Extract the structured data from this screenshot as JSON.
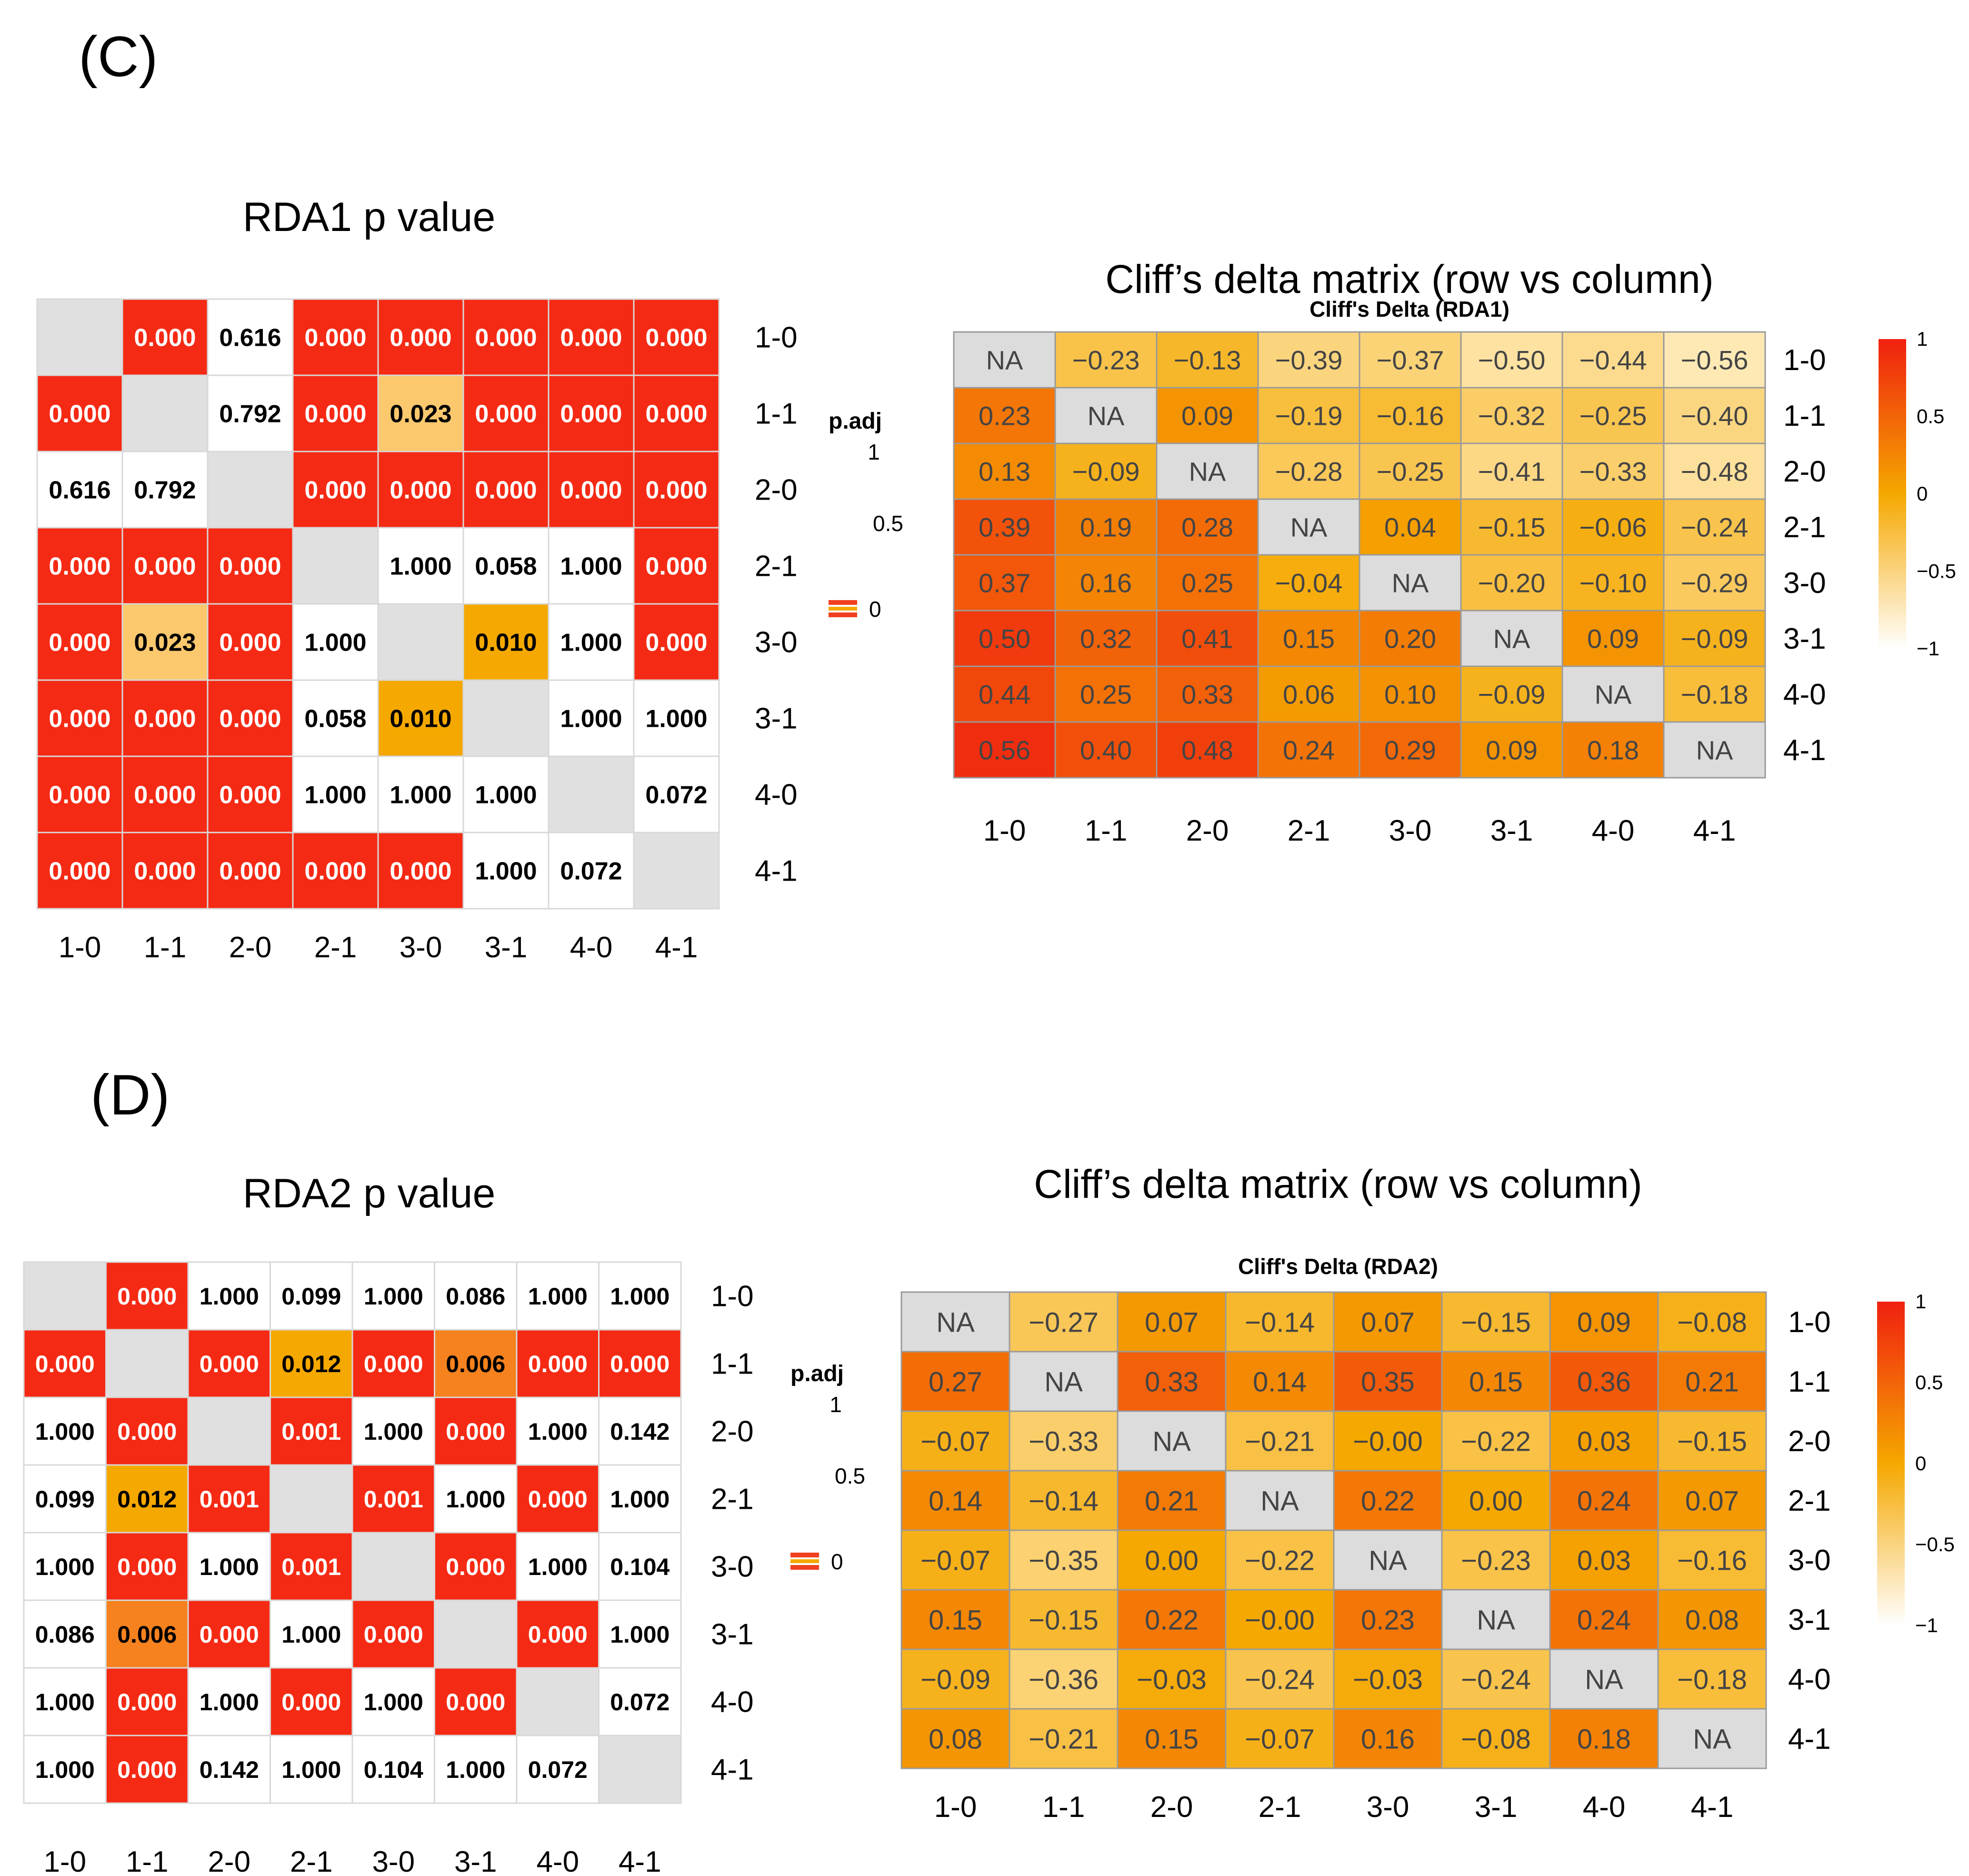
{
  "panel_labels": [
    "(C)",
    "(D)"
  ],
  "chart_data": [
    {
      "id": "rda1_p",
      "type": "heatmap",
      "title": "RDA1 p value",
      "legend_title": "p.adj",
      "legend_ticks": [
        "1",
        "0.5",
        "0"
      ],
      "row_labels": [
        "1-0",
        "1-1",
        "2-0",
        "2-1",
        "3-0",
        "3-1",
        "4-0",
        "4-1"
      ],
      "col_labels": [
        "1-0",
        "1-1",
        "2-0",
        "2-1",
        "3-0",
        "3-1",
        "4-0",
        "4-1"
      ],
      "values": [
        [
          "",
          "0.000",
          "0.616",
          "0.000",
          "0.000",
          "0.000",
          "0.000",
          "0.000"
        ],
        [
          "0.000",
          "",
          "0.792",
          "0.000",
          "0.023",
          "0.000",
          "0.000",
          "0.000"
        ],
        [
          "0.616",
          "0.792",
          "",
          "0.000",
          "0.000",
          "0.000",
          "0.000",
          "0.000"
        ],
        [
          "0.000",
          "0.000",
          "0.000",
          "",
          "1.000",
          "0.058",
          "1.000",
          "0.000"
        ],
        [
          "0.000",
          "0.023",
          "0.000",
          "1.000",
          "",
          "0.010",
          "1.000",
          "0.000"
        ],
        [
          "0.000",
          "0.000",
          "0.000",
          "0.058",
          "0.010",
          "",
          "1.000",
          "1.000"
        ],
        [
          "0.000",
          "0.000",
          "0.000",
          "1.000",
          "1.000",
          "1.000",
          "",
          "0.072"
        ],
        [
          "0.000",
          "0.000",
          "0.000",
          "0.000",
          "0.000",
          "1.000",
          "0.072",
          ""
        ]
      ]
    },
    {
      "id": "rda1_cliff",
      "type": "heatmap",
      "title": "Cliff’s delta matrix (row vs column)",
      "subtitle": "Cliff's Delta (RDA1)",
      "legend_ticks": [
        "1",
        "0.5",
        "0",
        "−0.5",
        "−1"
      ],
      "row_labels": [
        "1-0",
        "1-1",
        "2-0",
        "2-1",
        "3-0",
        "3-1",
        "4-0",
        "4-1"
      ],
      "col_labels": [
        "1-0",
        "1-1",
        "2-0",
        "2-1",
        "3-0",
        "3-1",
        "4-0",
        "4-1"
      ],
      "values": [
        [
          "NA",
          "−0.23",
          "−0.13",
          "−0.39",
          "−0.37",
          "−0.50",
          "−0.44",
          "−0.56"
        ],
        [
          "0.23",
          "NA",
          "0.09",
          "−0.19",
          "−0.16",
          "−0.32",
          "−0.25",
          "−0.40"
        ],
        [
          "0.13",
          "−0.09",
          "NA",
          "−0.28",
          "−0.25",
          "−0.41",
          "−0.33",
          "−0.48"
        ],
        [
          "0.39",
          "0.19",
          "0.28",
          "NA",
          "0.04",
          "−0.15",
          "−0.06",
          "−0.24"
        ],
        [
          "0.37",
          "0.16",
          "0.25",
          "−0.04",
          "NA",
          "−0.20",
          "−0.10",
          "−0.29"
        ],
        [
          "0.50",
          "0.32",
          "0.41",
          "0.15",
          "0.20",
          "NA",
          "0.09",
          "−0.09"
        ],
        [
          "0.44",
          "0.25",
          "0.33",
          "0.06",
          "0.10",
          "−0.09",
          "NA",
          "−0.18"
        ],
        [
          "0.56",
          "0.40",
          "0.48",
          "0.24",
          "0.29",
          "0.09",
          "0.18",
          "NA"
        ]
      ]
    },
    {
      "id": "rda2_p",
      "type": "heatmap",
      "title": "RDA2 p value",
      "legend_title": "p.adj",
      "legend_ticks": [
        "1",
        "0.5",
        "0"
      ],
      "row_labels": [
        "1-0",
        "1-1",
        "2-0",
        "2-1",
        "3-0",
        "3-1",
        "4-0",
        "4-1"
      ],
      "col_labels": [
        "1-0",
        "1-1",
        "2-0",
        "2-1",
        "3-0",
        "3-1",
        "4-0",
        "4-1"
      ],
      "values": [
        [
          "",
          "0.000",
          "1.000",
          "0.099",
          "1.000",
          "0.086",
          "1.000",
          "1.000"
        ],
        [
          "0.000",
          "",
          "0.000",
          "0.012",
          "0.000",
          "0.006",
          "0.000",
          "0.000"
        ],
        [
          "1.000",
          "0.000",
          "",
          "0.001",
          "1.000",
          "0.000",
          "1.000",
          "0.142"
        ],
        [
          "0.099",
          "0.012",
          "0.001",
          "",
          "0.001",
          "1.000",
          "0.000",
          "1.000"
        ],
        [
          "1.000",
          "0.000",
          "1.000",
          "0.001",
          "",
          "0.000",
          "1.000",
          "0.104"
        ],
        [
          "0.086",
          "0.006",
          "0.000",
          "1.000",
          "0.000",
          "",
          "0.000",
          "1.000"
        ],
        [
          "1.000",
          "0.000",
          "1.000",
          "0.000",
          "1.000",
          "0.000",
          "",
          "0.072"
        ],
        [
          "1.000",
          "0.000",
          "0.142",
          "1.000",
          "0.104",
          "1.000",
          "0.072",
          ""
        ]
      ]
    },
    {
      "id": "rda2_cliff",
      "type": "heatmap",
      "title": "Cliff’s delta matrix (row vs column)",
      "subtitle": "Cliff's Delta (RDA2)",
      "legend_ticks": [
        "1",
        "0.5",
        "0",
        "−0.5",
        "−1"
      ],
      "row_labels": [
        "1-0",
        "1-1",
        "2-0",
        "2-1",
        "3-0",
        "3-1",
        "4-0",
        "4-1"
      ],
      "col_labels": [
        "1-0",
        "1-1",
        "2-0",
        "2-1",
        "3-0",
        "3-1",
        "4-0",
        "4-1"
      ],
      "values": [
        [
          "NA",
          "−0.27",
          "0.07",
          "−0.14",
          "0.07",
          "−0.15",
          "0.09",
          "−0.08"
        ],
        [
          "0.27",
          "NA",
          "0.33",
          "0.14",
          "0.35",
          "0.15",
          "0.36",
          "0.21"
        ],
        [
          "−0.07",
          "−0.33",
          "NA",
          "−0.21",
          "−0.00",
          "−0.22",
          "0.03",
          "−0.15"
        ],
        [
          "0.14",
          "−0.14",
          "0.21",
          "NA",
          "0.22",
          "0.00",
          "0.24",
          "0.07"
        ],
        [
          "−0.07",
          "−0.35",
          "0.00",
          "−0.22",
          "NA",
          "−0.23",
          "0.03",
          "−0.16"
        ],
        [
          "0.15",
          "−0.15",
          "0.22",
          "−0.00",
          "0.23",
          "NA",
          "0.24",
          "0.08"
        ],
        [
          "−0.09",
          "−0.36",
          "−0.03",
          "−0.24",
          "−0.03",
          "−0.24",
          "NA",
          "−0.18"
        ],
        [
          "0.08",
          "−0.21",
          "0.15",
          "−0.07",
          "0.16",
          "−0.08",
          "0.18",
          "NA"
        ]
      ]
    }
  ]
}
